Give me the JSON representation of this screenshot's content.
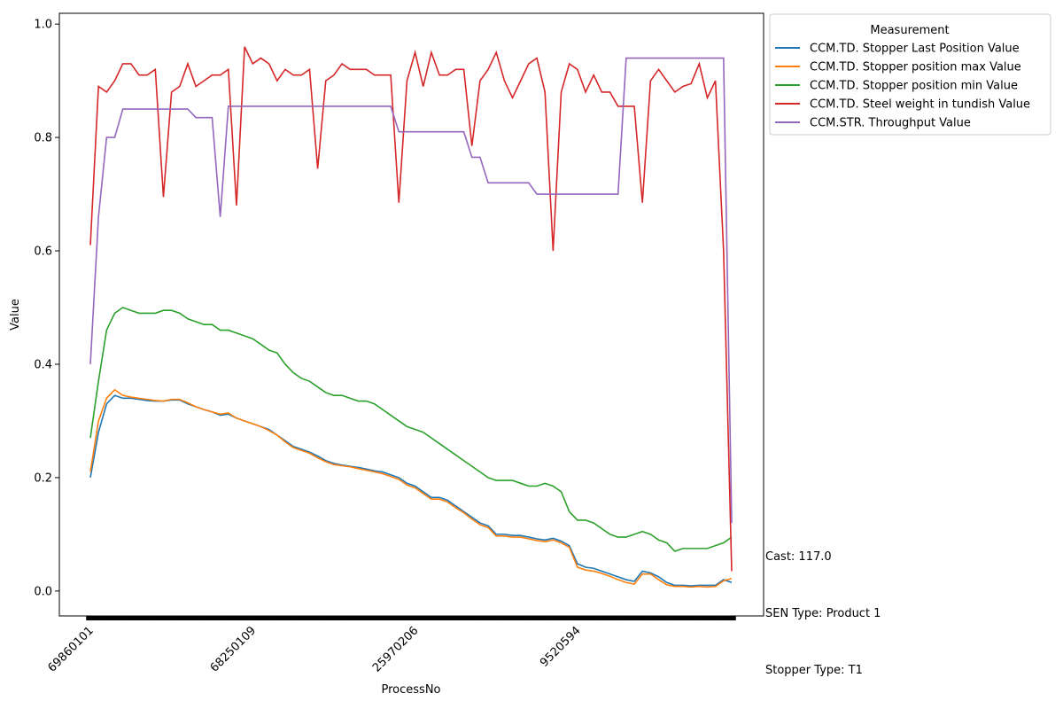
{
  "chart_data": {
    "type": "line",
    "x_label": "ProcessNo",
    "y_label": "Value",
    "legend_title": "Measurement",
    "legend_position": "outside upper right",
    "grid": false,
    "categories": [
      "69860101",
      null,
      null,
      null,
      null,
      null,
      null,
      null,
      null,
      null,
      null,
      null,
      null,
      null,
      null,
      null,
      null,
      null,
      null,
      null,
      "68250109",
      null,
      null,
      null,
      null,
      null,
      null,
      null,
      null,
      null,
      null,
      null,
      null,
      null,
      null,
      null,
      null,
      null,
      null,
      null,
      "25970206",
      null,
      null,
      null,
      null,
      null,
      null,
      null,
      null,
      null,
      null,
      null,
      null,
      null,
      null,
      null,
      null,
      null,
      null,
      null,
      "9520594",
      null,
      null,
      null,
      null,
      null,
      null,
      null,
      null,
      null,
      null,
      null,
      null,
      null,
      null,
      null,
      null,
      null,
      null,
      null
    ],
    "ylim": [
      -0.044,
      1.019
    ],
    "yticks": [
      {
        "value": 0,
        "label": "0.0"
      },
      0.2,
      0.4,
      0.6,
      0.8,
      {
        "value": 1,
        "label": "1.0"
      }
    ],
    "annotations": [
      "Cast: 117.0",
      "SEN Type: Product 1",
      "Stopper Type: T1"
    ],
    "series": [
      {
        "name": "CCM.TD. Stopper Last Position Value",
        "color": "#1f77b4",
        "values": [
          0.2,
          0.28,
          0.33,
          0.345,
          0.34,
          0.34,
          0.338,
          0.336,
          0.335,
          0.335,
          0.337,
          0.337,
          0.33,
          0.325,
          0.32,
          0.316,
          0.31,
          0.312,
          0.305,
          0.3,
          0.295,
          0.29,
          0.285,
          0.275,
          0.265,
          0.255,
          0.25,
          0.245,
          0.238,
          0.23,
          0.225,
          0.222,
          0.22,
          0.218,
          0.215,
          0.212,
          0.21,
          0.205,
          0.2,
          0.19,
          0.185,
          0.175,
          0.165,
          0.165,
          0.16,
          0.15,
          0.14,
          0.13,
          0.12,
          0.115,
          0.1,
          0.1,
          0.098,
          0.098,
          0.095,
          0.092,
          0.09,
          0.093,
          0.088,
          0.08,
          0.048,
          0.042,
          0.04,
          0.035,
          0.03,
          0.025,
          0.02,
          0.017,
          0.035,
          0.032,
          0.025,
          0.015,
          0.01,
          0.01,
          0.009,
          0.01,
          0.01,
          0.01,
          0.02,
          0.015
        ]
      },
      {
        "name": "CCM.TD. Stopper position max Value",
        "color": "#ff7f0e",
        "values": [
          0.21,
          0.3,
          0.34,
          0.355,
          0.345,
          0.342,
          0.34,
          0.338,
          0.336,
          0.335,
          0.338,
          0.338,
          0.332,
          0.325,
          0.32,
          0.316,
          0.312,
          0.314,
          0.305,
          0.3,
          0.295,
          0.29,
          0.283,
          0.275,
          0.263,
          0.253,
          0.248,
          0.243,
          0.235,
          0.228,
          0.223,
          0.221,
          0.219,
          0.216,
          0.213,
          0.21,
          0.207,
          0.202,
          0.197,
          0.187,
          0.182,
          0.172,
          0.162,
          0.162,
          0.157,
          0.147,
          0.138,
          0.127,
          0.117,
          0.112,
          0.097,
          0.097,
          0.095,
          0.095,
          0.092,
          0.089,
          0.087,
          0.09,
          0.085,
          0.077,
          0.042,
          0.037,
          0.035,
          0.031,
          0.026,
          0.02,
          0.015,
          0.012,
          0.03,
          0.03,
          0.02,
          0.011,
          0.008,
          0.008,
          0.007,
          0.008,
          0.007,
          0.008,
          0.018,
          0.022
        ]
      },
      {
        "name": "CCM.TD. Stopper position min Value",
        "color": "#2ca02c",
        "values": [
          0.27,
          0.37,
          0.46,
          0.49,
          0.5,
          0.495,
          0.49,
          0.49,
          0.49,
          0.495,
          0.495,
          0.49,
          0.48,
          0.475,
          0.47,
          0.47,
          0.46,
          0.46,
          0.455,
          0.45,
          0.445,
          0.435,
          0.425,
          0.42,
          0.4,
          0.385,
          0.375,
          0.37,
          0.36,
          0.35,
          0.345,
          0.345,
          0.34,
          0.335,
          0.335,
          0.33,
          0.32,
          0.31,
          0.3,
          0.29,
          0.285,
          0.28,
          0.27,
          0.26,
          0.25,
          0.24,
          0.23,
          0.22,
          0.21,
          0.2,
          0.195,
          0.195,
          0.195,
          0.19,
          0.185,
          0.185,
          0.19,
          0.185,
          0.175,
          0.14,
          0.125,
          0.125,
          0.12,
          0.11,
          0.1,
          0.095,
          0.095,
          0.1,
          0.105,
          0.1,
          0.09,
          0.085,
          0.07,
          0.075,
          0.075,
          0.075,
          0.075,
          0.08,
          0.085,
          0.095
        ]
      },
      {
        "name": "CCM.TD. Steel weight in tundish Value",
        "color": "#d62728",
        "values": [
          0.61,
          0.89,
          0.88,
          0.9,
          0.93,
          0.93,
          0.91,
          0.91,
          0.92,
          0.695,
          0.88,
          0.89,
          0.93,
          0.89,
          0.9,
          0.91,
          0.91,
          0.92,
          0.68,
          0.96,
          0.93,
          0.94,
          0.93,
          0.9,
          0.92,
          0.91,
          0.91,
          0.92,
          0.745,
          0.9,
          0.91,
          0.93,
          0.92,
          0.92,
          0.92,
          0.91,
          0.91,
          0.91,
          0.685,
          0.9,
          0.95,
          0.89,
          0.95,
          0.91,
          0.91,
          0.92,
          0.92,
          0.785,
          0.9,
          0.92,
          0.95,
          0.9,
          0.87,
          0.9,
          0.93,
          0.94,
          0.88,
          0.6,
          0.88,
          0.93,
          0.92,
          0.88,
          0.91,
          0.88,
          0.88,
          0.855,
          0.855,
          0.855,
          0.685,
          0.9,
          0.92,
          0.9,
          0.88,
          0.89,
          0.895,
          0.93,
          0.87,
          0.9,
          0.6,
          0.035
        ]
      },
      {
        "name": "CCM.STR. Throughput Value",
        "color": "#9467bd",
        "values": [
          0.4,
          0.66,
          0.8,
          0.8,
          0.85,
          0.85,
          0.85,
          0.85,
          0.85,
          0.85,
          0.85,
          0.85,
          0.85,
          0.835,
          0.835,
          0.835,
          0.66,
          0.855,
          0.855,
          0.855,
          0.855,
          0.855,
          0.855,
          0.855,
          0.855,
          0.855,
          0.855,
          0.855,
          0.855,
          0.855,
          0.855,
          0.855,
          0.855,
          0.855,
          0.855,
          0.855,
          0.855,
          0.855,
          0.81,
          0.81,
          0.81,
          0.81,
          0.81,
          0.81,
          0.81,
          0.81,
          0.81,
          0.765,
          0.765,
          0.72,
          0.72,
          0.72,
          0.72,
          0.72,
          0.72,
          0.7,
          0.7,
          0.7,
          0.7,
          0.7,
          0.7,
          0.7,
          0.7,
          0.7,
          0.7,
          0.7,
          0.94,
          0.94,
          0.94,
          0.94,
          0.94,
          0.94,
          0.94,
          0.94,
          0.94,
          0.94,
          0.94,
          0.94,
          0.94,
          0.12
        ]
      }
    ]
  }
}
